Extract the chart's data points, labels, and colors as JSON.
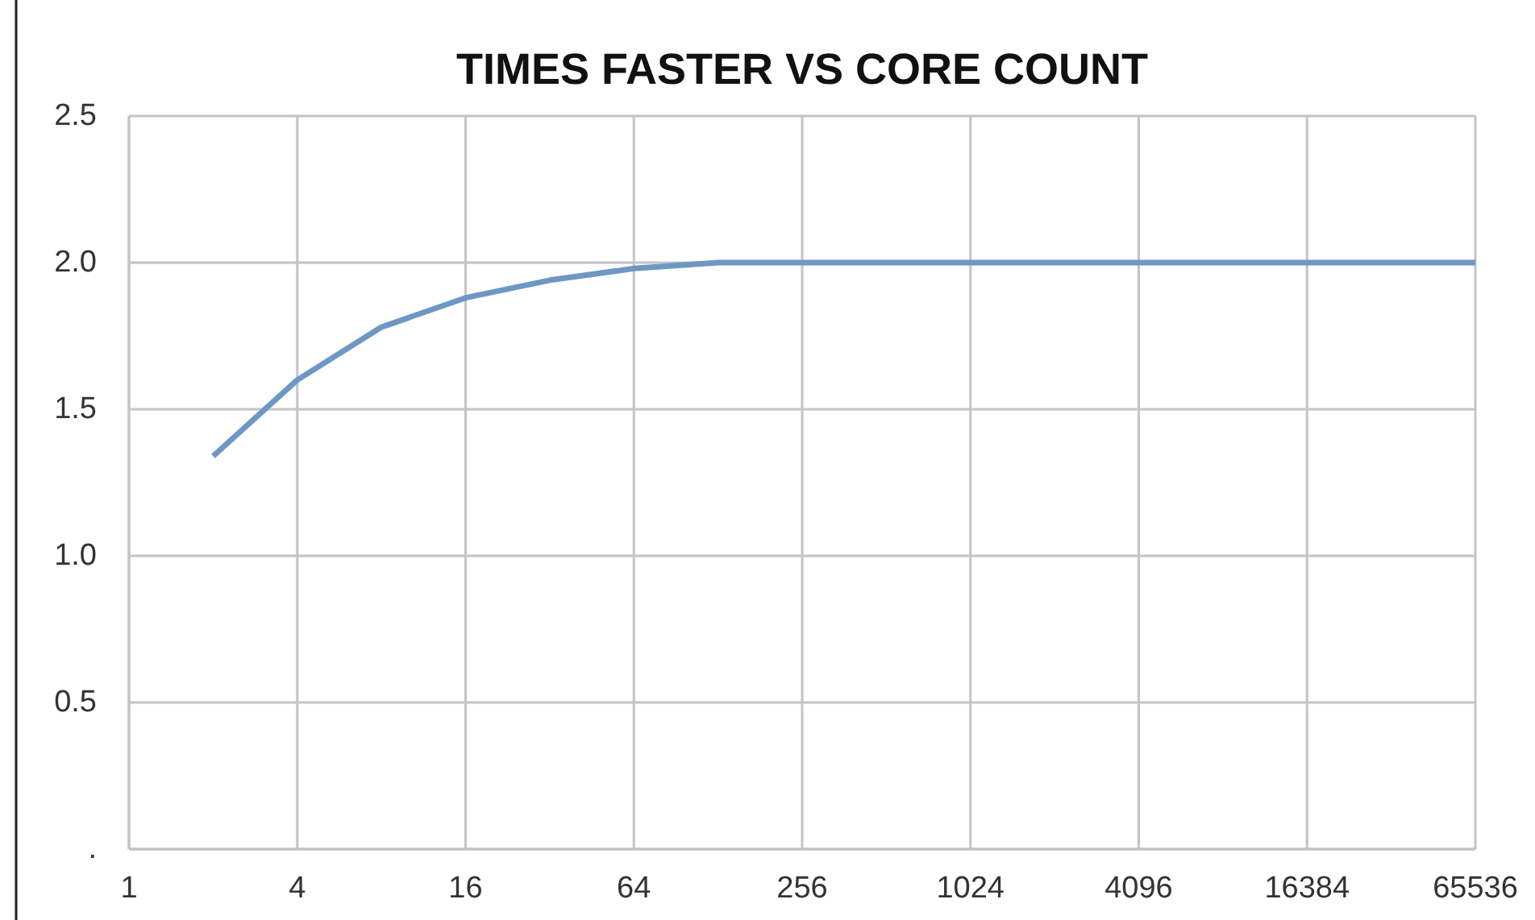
{
  "chart_data": {
    "type": "line",
    "title": "TIMES FASTER VS CORE COUNT",
    "x": [
      2,
      4,
      8,
      16,
      32,
      64,
      128,
      256,
      512,
      1024,
      2048,
      4096,
      8192,
      16384,
      32768,
      65536
    ],
    "series": [
      {
        "color": "#6e97c4",
        "values": [
          1.34,
          1.6,
          1.78,
          1.88,
          1.94,
          1.98,
          2.0,
          2.0,
          2.0,
          2.0,
          2.0,
          2.0,
          2.0,
          2.0,
          2.0,
          2.0
        ]
      }
    ],
    "log": "x",
    "xlim": [
      1,
      65536
    ],
    "xticks": [
      1,
      4,
      16,
      64,
      256,
      1024,
      4096,
      16384,
      65536
    ],
    "ylim": [
      0,
      2.5
    ],
    "yticks": [
      {
        "value": 0,
        "label": "."
      },
      {
        "value": 0.5,
        "label": "0.5"
      },
      {
        "value": 1,
        "label": "1.0"
      },
      {
        "value": 1.5,
        "label": "1.5"
      },
      {
        "value": 2,
        "label": "2.0"
      },
      {
        "value": 2.5,
        "label": "2.5"
      }
    ],
    "grid": true,
    "marker": "none",
    "line_style": "solid"
  }
}
